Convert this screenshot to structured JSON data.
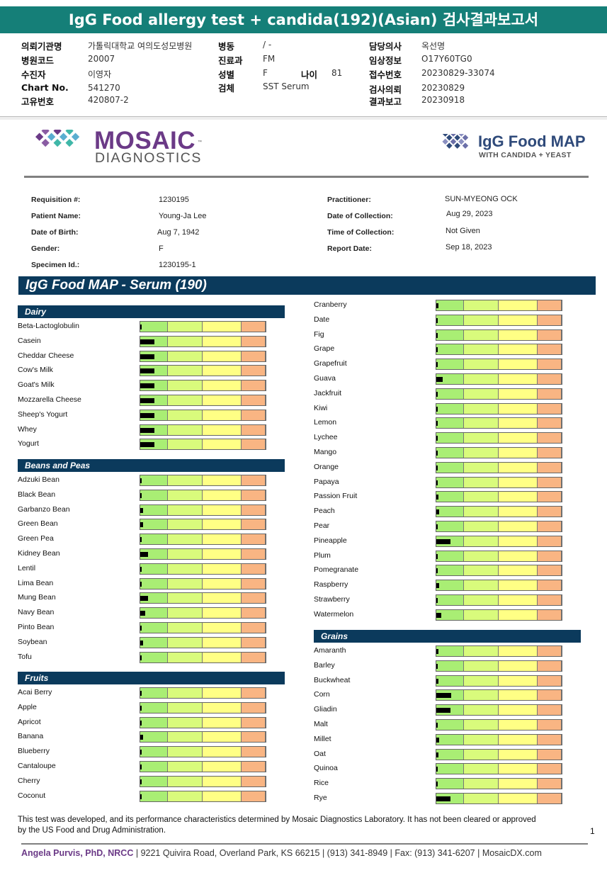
{
  "title": "IgG Food allergy test + candida(192)(Asian) 검사결과보고서",
  "header": {
    "col1": [
      {
        "label": "의뢰기관명",
        "value": "가톨릭대학교 여의도성모병원"
      },
      {
        "label": "병원코드",
        "value": "20007"
      },
      {
        "label": "수진자",
        "value": "이영자"
      },
      {
        "label": "Chart No.",
        "value": "541270"
      },
      {
        "label": "고유번호",
        "value": "420807-2"
      }
    ],
    "col2": [
      {
        "label": "병동",
        "value": "/ -"
      },
      {
        "label": "진료과",
        "value": "FM"
      },
      {
        "label": "성별",
        "value": "F"
      },
      {
        "label": "검체",
        "value": "SST Serum"
      }
    ],
    "age_label": "나이",
    "age_value": "81",
    "col3": [
      {
        "label": "담당의사",
        "value": "옥선명"
      },
      {
        "label": "임상정보",
        "value": "O17Y60TG0"
      },
      {
        "label": "접수번호",
        "value": "20230829-33074"
      },
      {
        "label": "검사의뢰",
        "value": "20230829"
      },
      {
        "label": "결과보고",
        "value": "20230918"
      }
    ]
  },
  "logo": {
    "brand_line1": "MOSAIC",
    "brand_line2": "DIAGNOSTICS",
    "tm": "™",
    "product_title": "IgG Food MAP",
    "product_subtitle": "WITH CANDIDA + YEAST"
  },
  "info": {
    "left": [
      {
        "label": "Requisition #:",
        "value": "1230195"
      },
      {
        "label": "Patient Name:",
        "value": "Young-Ja Lee"
      },
      {
        "label": "Date of Birth:",
        "value": "Aug 7, 1942"
      },
      {
        "label": "Gender:",
        "value": "F"
      },
      {
        "label": "Specimen Id.:",
        "value": "1230195-1"
      }
    ],
    "right": [
      {
        "label": "Practitioner:",
        "value": "SUN-MYEONG OCK"
      },
      {
        "label": "Date of Collection:",
        "value": "Aug 29, 2023"
      },
      {
        "label": "Time of Collection:",
        "value": "Not Given"
      },
      {
        "label": "Report Date:",
        "value": "Sep 18, 2023"
      }
    ]
  },
  "report_title": "IgG Food MAP - Serum (190)",
  "colors": {
    "band1": "#a9ee74",
    "band2": "#d9fb7c",
    "band3": "#ffff85",
    "band4": "#f9b583",
    "header_teal": "#157f78",
    "section_navy": "#0b3a5c",
    "brand_purple": "#6b3a87"
  },
  "sections_left": [
    {
      "title": "Dairy",
      "items": [
        {
          "name": "Beta-Lactoglobulin",
          "level": 0.01
        },
        {
          "name": "Casein",
          "level": 0.11
        },
        {
          "name": "Cheddar Cheese",
          "level": 0.11
        },
        {
          "name": "Cow's Milk",
          "level": 0.11
        },
        {
          "name": "Goat's Milk",
          "level": 0.11
        },
        {
          "name": "Mozzarella Cheese",
          "level": 0.11
        },
        {
          "name": "Sheep's Yogurt",
          "level": 0.11
        },
        {
          "name": "Whey",
          "level": 0.11
        },
        {
          "name": "Yogurt",
          "level": 0.11
        }
      ]
    },
    {
      "title": "Beans and Peas",
      "items": [
        {
          "name": "Adzuki Bean",
          "level": 0.01
        },
        {
          "name": "Black Bean",
          "level": 0.01
        },
        {
          "name": "Garbanzo Bean",
          "level": 0.02
        },
        {
          "name": "Green Bean",
          "level": 0.025
        },
        {
          "name": "Green Pea",
          "level": 0.01
        },
        {
          "name": "Kidney Bean",
          "level": 0.06
        },
        {
          "name": "Lentil",
          "level": 0.01
        },
        {
          "name": "Lima Bean",
          "level": 0.01
        },
        {
          "name": "Mung Bean",
          "level": 0.06
        },
        {
          "name": "Navy Bean",
          "level": 0.04
        },
        {
          "name": "Pinto Bean",
          "level": 0.01
        },
        {
          "name": "Soybean",
          "level": 0.025
        },
        {
          "name": "Tofu",
          "level": 0.01
        }
      ]
    },
    {
      "title": "Fruits",
      "items": [
        {
          "name": "Acai Berry",
          "level": 0.01
        },
        {
          "name": "Apple",
          "level": 0.01
        },
        {
          "name": "Apricot",
          "level": 0.01
        },
        {
          "name": "Banana",
          "level": 0.02
        },
        {
          "name": "Blueberry",
          "level": 0.01
        },
        {
          "name": "Cantaloupe",
          "level": 0.01
        },
        {
          "name": "Cherry",
          "level": 0.01
        },
        {
          "name": "Coconut",
          "level": 0.01
        }
      ]
    }
  ],
  "sections_right": [
    {
      "title": "",
      "items": [
        {
          "name": "Cranberry",
          "level": 0.015
        },
        {
          "name": "Date",
          "level": 0.01
        },
        {
          "name": "Fig",
          "level": 0.01
        },
        {
          "name": "Grape",
          "level": 0.01
        },
        {
          "name": "Grapefruit",
          "level": 0.01
        },
        {
          "name": "Guava",
          "level": 0.05
        },
        {
          "name": "Jackfruit",
          "level": 0.01
        },
        {
          "name": "Kiwi",
          "level": 0.01
        },
        {
          "name": "Lemon",
          "level": 0.01
        },
        {
          "name": "Lychee",
          "level": 0.01
        },
        {
          "name": "Mango",
          "level": 0.01
        },
        {
          "name": "Orange",
          "level": 0.01
        },
        {
          "name": "Papaya",
          "level": 0.01
        },
        {
          "name": "Passion Fruit",
          "level": 0.015
        },
        {
          "name": "Peach",
          "level": 0.02
        },
        {
          "name": "Pear",
          "level": 0.01
        },
        {
          "name": "Pineapple",
          "level": 0.11
        },
        {
          "name": "Plum",
          "level": 0.01
        },
        {
          "name": "Pomegranate",
          "level": 0.01
        },
        {
          "name": "Raspberry",
          "level": 0.02
        },
        {
          "name": "Strawberry",
          "level": 0.01
        },
        {
          "name": "Watermelon",
          "level": 0.04
        }
      ]
    },
    {
      "title": "Grains",
      "items": [
        {
          "name": "Amaranth",
          "level": 0.015
        },
        {
          "name": "Barley",
          "level": 0.01
        },
        {
          "name": "Buckwheat",
          "level": 0.015
        },
        {
          "name": "Corn",
          "level": 0.12
        },
        {
          "name": "Gliadin",
          "level": 0.11
        },
        {
          "name": "Malt",
          "level": 0.01
        },
        {
          "name": "Millet",
          "level": 0.02
        },
        {
          "name": "Oat",
          "level": 0.015
        },
        {
          "name": "Quinoa",
          "level": 0.01
        },
        {
          "name": "Rice",
          "level": 0.01
        },
        {
          "name": "Rye",
          "level": 0.11
        }
      ]
    }
  ],
  "disclaimer": "This test was developed, and its performance characteristics determined by Mosaic Diagnostics Laboratory. It has not been cleared or approved by the US Food and Drug Administration.",
  "page_number": "1",
  "footer": {
    "name": "Angela Purvis, PhD, NRCC",
    "address": " | 9221 Quivira Road, Overland Park, KS 66215  |  (913) 341-8949  |  Fax: (913) 341-6207 | MosaicDX.com"
  }
}
